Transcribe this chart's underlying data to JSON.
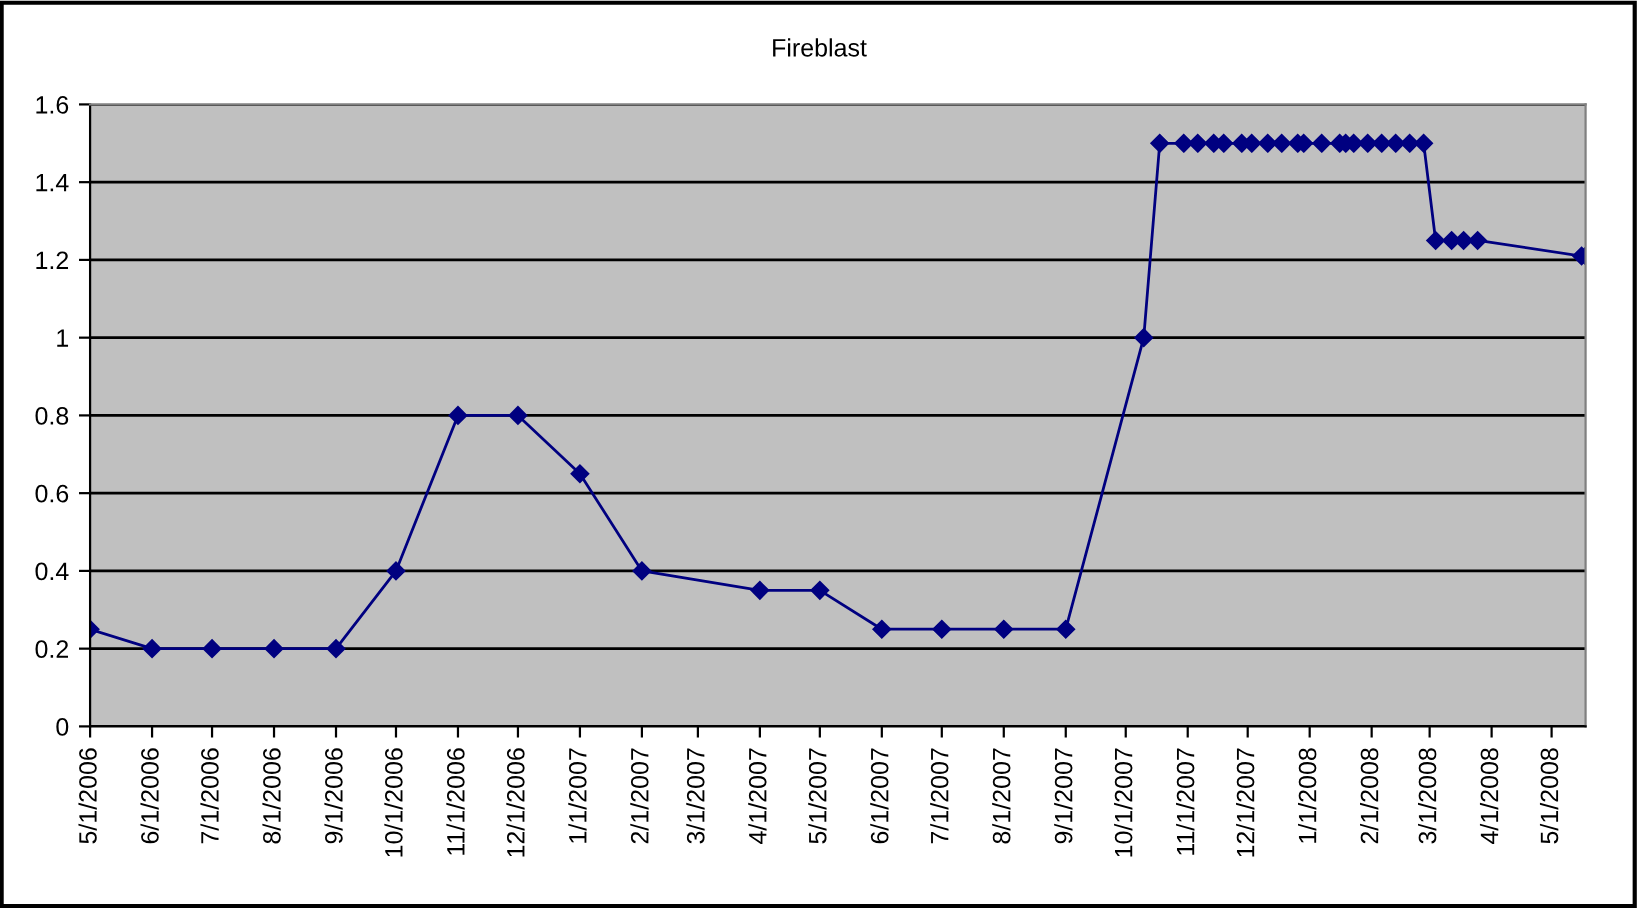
{
  "chart_data": {
    "type": "line",
    "title": "Fireblast",
    "x": [
      "2006-05-01",
      "2006-06-01",
      "2006-07-01",
      "2006-08-01",
      "2006-09-01",
      "2006-10-01",
      "2006-11-01",
      "2006-12-01",
      "2007-01-01",
      "2007-02-01",
      "2007-04-01",
      "2007-05-01",
      "2007-06-01",
      "2007-07-01",
      "2007-08-01",
      "2007-09-01",
      "2007-10-10",
      "2007-10-18",
      "2007-10-30",
      "2007-11-06",
      "2007-11-14",
      "2007-11-19",
      "2007-11-28",
      "2007-12-03",
      "2007-12-11",
      "2007-12-18",
      "2007-12-26",
      "2007-12-29",
      "2008-01-07",
      "2008-01-16",
      "2008-01-19",
      "2008-01-23",
      "2008-01-30",
      "2008-02-06",
      "2008-02-13",
      "2008-02-20",
      "2008-02-27",
      "2008-03-04",
      "2008-03-12",
      "2008-03-18",
      "2008-03-25",
      "2008-05-16",
      "2008-05-18"
    ],
    "series": [
      {
        "color": "#000080",
        "values": [
          0.25,
          0.2,
          0.2,
          0.2,
          0.2,
          0.4,
          0.8,
          0.8,
          0.65,
          0.4,
          0.35,
          0.35,
          0.25,
          0.25,
          0.25,
          0.25,
          1.0,
          1.5,
          1.5,
          1.5,
          1.5,
          1.5,
          1.5,
          1.5,
          1.5,
          1.5,
          1.5,
          1.5,
          1.5,
          1.5,
          1.5,
          1.5,
          1.5,
          1.5,
          1.5,
          1.5,
          1.5,
          1.25,
          1.25,
          1.25,
          1.25,
          1.21,
          1.21
        ]
      }
    ],
    "xlim": [
      "2006-05-01",
      "2008-05-18"
    ],
    "xticks": [
      {
        "value": "2006-05-01",
        "label": "5/1/2006"
      },
      {
        "value": "2006-06-01",
        "label": "6/1/2006"
      },
      {
        "value": "2006-07-01",
        "label": "7/1/2006"
      },
      {
        "value": "2006-08-01",
        "label": "8/1/2006"
      },
      {
        "value": "2006-09-01",
        "label": "9/1/2006"
      },
      {
        "value": "2006-10-01",
        "label": "10/1/2006"
      },
      {
        "value": "2006-11-01",
        "label": "11/1/2006"
      },
      {
        "value": "2006-12-01",
        "label": "12/1/2006"
      },
      {
        "value": "2007-01-01",
        "label": "1/1/2007"
      },
      {
        "value": "2007-02-01",
        "label": "2/1/2007"
      },
      {
        "value": "2007-03-01",
        "label": "3/1/2007"
      },
      {
        "value": "2007-04-01",
        "label": "4/1/2007"
      },
      {
        "value": "2007-05-01",
        "label": "5/1/2007"
      },
      {
        "value": "2007-06-01",
        "label": "6/1/2007"
      },
      {
        "value": "2007-07-01",
        "label": "7/1/2007"
      },
      {
        "value": "2007-08-01",
        "label": "8/1/2007"
      },
      {
        "value": "2007-09-01",
        "label": "9/1/2007"
      },
      {
        "value": "2007-10-01",
        "label": "10/1/2007"
      },
      {
        "value": "2007-11-01",
        "label": "11/1/2007"
      },
      {
        "value": "2007-12-01",
        "label": "12/1/2007"
      },
      {
        "value": "2008-01-01",
        "label": "1/1/2008"
      },
      {
        "value": "2008-02-01",
        "label": "2/1/2008"
      },
      {
        "value": "2008-03-01",
        "label": "3/1/2008"
      },
      {
        "value": "2008-04-01",
        "label": "4/1/2008"
      },
      {
        "value": "2008-05-01",
        "label": "5/1/2008"
      }
    ],
    "ylim": [
      0,
      1.6
    ],
    "yticks": [
      0,
      0.2,
      0.4,
      0.6,
      0.8,
      1,
      1.2,
      1.4,
      1.6
    ],
    "grid": "y",
    "marker": "diamond",
    "line_style": "solid"
  }
}
